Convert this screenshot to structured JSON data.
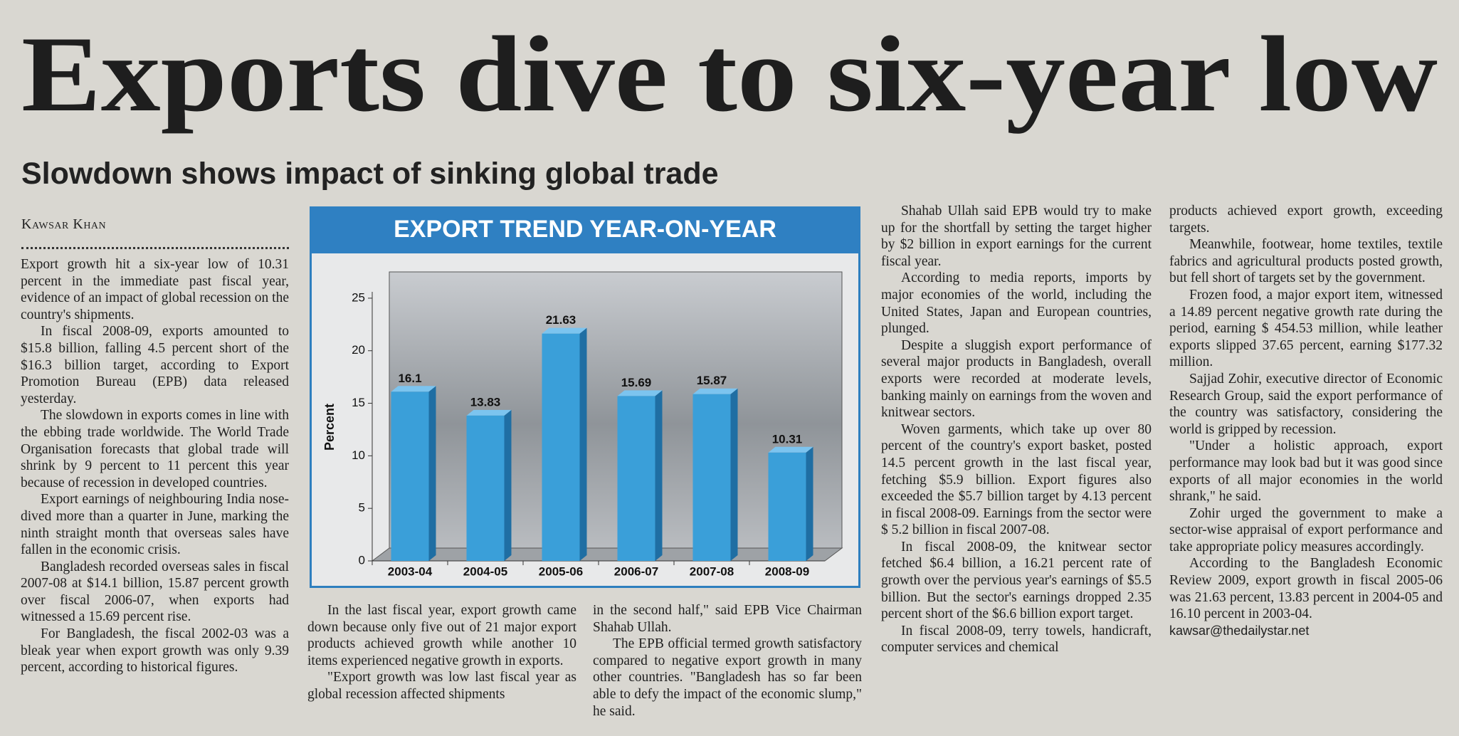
{
  "headline": "Exports dive to six-year low",
  "subheadline": "Slowdown shows impact of sinking global trade",
  "byline": "Kawsar Khan",
  "chart_data": {
    "type": "bar",
    "title": "EXPORT TREND YEAR-ON-YEAR",
    "y_label": "Percent",
    "categories": [
      "2003-04",
      "2004-05",
      "2005-06",
      "2006-07",
      "2007-08",
      "2008-09"
    ],
    "values": [
      16.1,
      13.83,
      21.63,
      15.69,
      15.87,
      10.31
    ],
    "color": "#3a9fd9",
    "ylim": [
      0,
      27.5
    ],
    "yticks": [
      0,
      5,
      10,
      15,
      20,
      25
    ]
  },
  "columns": [
    {
      "paragraphs": [
        "Export growth hit a six-year low of 10.31 percent in the immediate past fiscal year, evidence of an impact of global recession on the country's shipments.",
        "In fiscal 2008-09, exports amounted to $15.8 billion, falling 4.5 percent short of the $16.3 billion target, according to Export Promotion Bureau (EPB) data released yesterday.",
        "The slowdown in exports comes in line with the ebbing trade worldwide. The World Trade Organisation forecasts that global trade will shrink by 9 percent to 11 percent this year because of recession in developed countries.",
        "Export earnings of neighbouring India nose-dived more than a quarter in June, marking the ninth straight month that overseas sales have fallen in the economic crisis.",
        "Bangladesh recorded overseas sales in fiscal 2007-08 at $14.1 billion, 15.87 percent growth over fiscal 2006-07, when exports had witnessed a 15.69 percent rise.",
        "For Bangladesh, the fiscal 2002-03 was a bleak year when export growth was only 9.39 percent, according to historical figures."
      ]
    },
    {
      "paragraphs": [
        "In the last fiscal year, export growth came down because only five out of 21 major export products achieved growth while another 10 items experienced negative growth in exports.",
        "\"Export growth was low last fiscal year as global recession affected shipments"
      ]
    },
    {
      "paragraphs": [
        "in the second half,\" said EPB Vice Chairman Shahab Ullah.",
        "The EPB official termed growth satisfactory compared to negative export growth in many other countries. \"Bangladesh has so far been able to defy the impact of the economic slump,\" he said."
      ]
    },
    {
      "paragraphs": [
        "Shahab Ullah said EPB would try to make up for the shortfall by setting the target higher by $2 billion in export earnings for the current fiscal year.",
        "According to media reports, imports by major economies of the world, including the United States, Japan and European countries, plunged.",
        "Despite a sluggish export performance of several major products in Bangladesh, overall exports were recorded at moderate levels, banking mainly on earnings from the woven and knitwear sectors.",
        "Woven garments, which take up over 80 percent of the country's export basket, posted 14.5 percent growth in the last fiscal year, fetching $5.9 billion. Export figures also exceeded the $5.7 billion target by 4.13 percent in fiscal 2008-09. Earnings from the sector were $ 5.2 billion in fiscal 2007-08.",
        "In fiscal 2008-09, the knitwear sector fetched $6.4 billion, a 16.21 percent rate of growth over the pervious year's earnings of $5.5 billion. But the sector's earnings dropped 2.35 percent short of the $6.6 billion export target.",
        "In fiscal 2008-09, terry towels, handicraft, computer services and chemical"
      ]
    },
    {
      "paragraphs": [
        "products achieved export growth, exceeding targets.",
        "Meanwhile, footwear, home textiles, textile fabrics and agricultural products posted growth, but fell short of targets set by the government.",
        "Frozen food, a major export item, witnessed a 14.89 percent negative growth rate during the period, earning $ 454.53 million, while leather exports slipped 37.65 percent, earning $177.32 million.",
        "Sajjad Zohir, executive director of Economic Research Group, said the export performance of the country was satisfactory, considering the world is gripped by recession.",
        "\"Under a holistic approach, export performance may look bad but it was good since exports of all major economies in the world shrank,\" he said.",
        "Zohir urged the government to make a sector-wise appraisal of export performance and take appropriate policy measures accordingly.",
        "According to the Bangladesh Economic Review 2009, export growth in fiscal 2005-06 was 21.63 percent, 13.83 percent in 2004-05 and 16.10 percent in 2003-04."
      ]
    }
  ],
  "email": "kawsar@thedailystar.net"
}
